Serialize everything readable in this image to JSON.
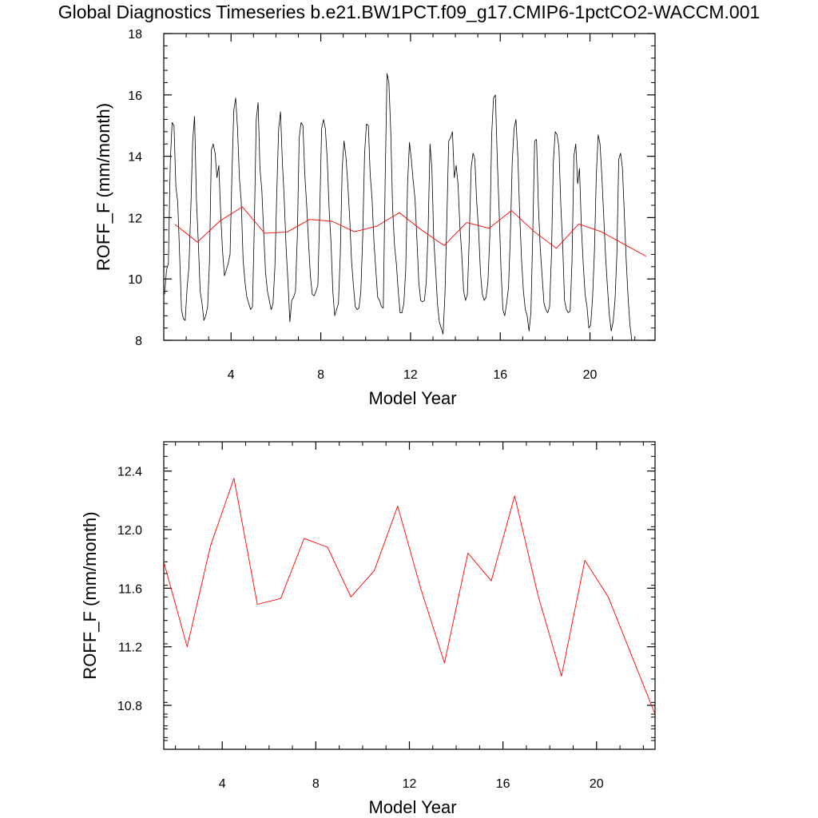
{
  "title": "Global Diagnostics Timeseries b.e21.BW1PCT.f09_g17.CMIP6-1pctCO2-WACCM.001",
  "colors": {
    "monthly_line": "#000000",
    "annual_line": "#ff0000"
  },
  "chart_data": [
    {
      "type": "line",
      "xlabel": "Model Year",
      "ylabel": "ROFF_F (mm/month)",
      "xlim": [
        1,
        22.9
      ],
      "ylim": [
        8,
        18
      ],
      "x_ticks": [
        4,
        8,
        12,
        16,
        20
      ],
      "x_tick_labels": [
        "4",
        "8",
        "12",
        "16",
        "20"
      ],
      "y_ticks": [
        8,
        10,
        12,
        14,
        16,
        18
      ],
      "y_tick_labels": [
        "8",
        "10",
        "12",
        "14",
        "16",
        "18"
      ],
      "series": [
        {
          "role": "monthly",
          "start_year": 1.04,
          "step": 0.0833,
          "values": [
            9.5,
            10.3,
            10.5,
            13.8,
            15.1,
            15.0,
            13.0,
            12.5,
            10.8,
            9.0,
            8.7,
            8.65,
            9.7,
            10.4,
            12.3,
            14.5,
            15.3,
            12.6,
            11.2,
            9.6,
            9.2,
            8.65,
            8.8,
            9.1,
            10.6,
            14.2,
            14.4,
            14.1,
            13.3,
            13.7,
            12.1,
            10.9,
            10.1,
            10.3,
            10.5,
            10.8,
            13.4,
            15.5,
            15.9,
            14.9,
            13.3,
            12.5,
            10.6,
            9.9,
            9.4,
            9.2,
            9.0,
            9.1,
            11.8,
            15.2,
            15.75,
            13.6,
            12.9,
            11.5,
            10.2,
            9.6,
            9.3,
            9.0,
            9.2,
            10.4,
            12.8,
            14.9,
            15.45,
            13.8,
            12.6,
            11.0,
            9.9,
            8.6,
            9.3,
            9.4,
            9.6,
            11.4,
            14.6,
            15.1,
            15.0,
            13.4,
            12.4,
            11.2,
            10.1,
            9.5,
            9.45,
            9.6,
            9.8,
            12.2,
            14.9,
            15.2,
            14.9,
            13.9,
            12.3,
            11.2,
            9.6,
            8.8,
            9.0,
            9.2,
            10.8,
            13.6,
            14.5,
            14.0,
            13.1,
            12.0,
            10.6,
            9.8,
            9.1,
            9.0,
            9.05,
            9.6,
            11.4,
            14.1,
            15.05,
            15.0,
            13.4,
            12.6,
            11.2,
            10.3,
            9.4,
            9.3,
            9.1,
            9.05,
            13.2,
            16.7,
            16.4,
            14.8,
            12.3,
            11.1,
            10.5,
            9.6,
            8.9,
            8.9,
            9.2,
            10.3,
            13.1,
            14.45,
            13.9,
            13.2,
            12.6,
            11.3,
            9.9,
            9.3,
            9.25,
            9.3,
            9.9,
            11.6,
            14.4,
            13.6,
            11.3,
            10.3,
            9.2,
            8.6,
            8.4,
            8.2,
            9.5,
            11.9,
            14.5,
            14.6,
            14.8,
            13.3,
            13.7,
            13.1,
            11.7,
            10.8,
            9.6,
            9.3,
            9.5,
            11.3,
            13.6,
            14.1,
            13.9,
            12.5,
            11.6,
            10.2,
            9.5,
            9.3,
            9.4,
            9.9,
            11.4,
            14.7,
            15.9,
            16.0,
            13.9,
            12.2,
            10.3,
            9.0,
            8.8,
            9.2,
            9.7,
            11.4,
            13.8,
            14.9,
            15.2,
            14.0,
            12.1,
            10.6,
            9.6,
            9.0,
            8.8,
            8.3,
            8.9,
            11.5,
            14.5,
            14.55,
            12.4,
            11.0,
            10.1,
            9.2,
            9.0,
            8.9,
            9.1,
            10.8,
            13.8,
            14.8,
            14.7,
            14.3,
            12.4,
            11.1,
            9.3,
            9.0,
            8.9,
            8.95,
            10.6,
            14.0,
            14.4,
            13.1,
            13.6,
            11.7,
            10.5,
            9.5,
            9.1,
            8.4,
            8.5,
            9.4,
            10.9,
            13.4,
            14.7,
            14.4,
            13.3,
            12.0,
            10.7,
            9.7,
            8.8,
            8.3,
            8.6,
            9.3,
            10.8,
            13.9,
            14.1,
            13.6,
            12.1,
            10.6,
            9.4,
            8.5,
            8.0
          ]
        },
        {
          "role": "annual",
          "x": [
            1.5,
            2.5,
            3.5,
            4.5,
            5.5,
            6.5,
            7.5,
            8.5,
            9.5,
            10.5,
            11.5,
            12.5,
            13.5,
            14.5,
            15.5,
            16.5,
            17.5,
            18.5,
            19.5,
            20.5,
            21.5,
            22.5
          ],
          "values": [
            11.78,
            11.2,
            11.89,
            12.35,
            11.49,
            11.53,
            11.94,
            11.88,
            11.54,
            11.72,
            12.16,
            11.59,
            11.09,
            11.84,
            11.65,
            12.23,
            11.55,
            11.0,
            11.79,
            11.54,
            11.14,
            10.74
          ]
        }
      ]
    },
    {
      "type": "line",
      "xlabel": "Model Year",
      "ylabel": "ROFF_F (mm/month)",
      "xlim": [
        1.5,
        22.5
      ],
      "ylim": [
        10.5,
        12.6
      ],
      "x_ticks": [
        4,
        8,
        12,
        16,
        20
      ],
      "x_tick_labels": [
        "4",
        "8",
        "12",
        "16",
        "20"
      ],
      "y_ticks": [
        10.8,
        11.2,
        11.6,
        12.0,
        12.4
      ],
      "y_tick_labels": [
        "10.8",
        "11.2",
        "11.6",
        "12.0",
        "12.4"
      ],
      "series": [
        {
          "role": "annual",
          "x": [
            1.5,
            2.5,
            3.5,
            4.5,
            5.5,
            6.5,
            7.5,
            8.5,
            9.5,
            10.5,
            11.5,
            12.5,
            13.5,
            14.5,
            15.5,
            16.5,
            17.5,
            18.5,
            19.5,
            20.5,
            21.5,
            22.5
          ],
          "values": [
            11.78,
            11.2,
            11.89,
            12.35,
            11.49,
            11.53,
            11.94,
            11.88,
            11.54,
            11.72,
            12.16,
            11.59,
            11.09,
            11.84,
            11.65,
            12.23,
            11.55,
            11.0,
            11.79,
            11.54,
            11.14,
            10.74
          ]
        }
      ]
    }
  ]
}
